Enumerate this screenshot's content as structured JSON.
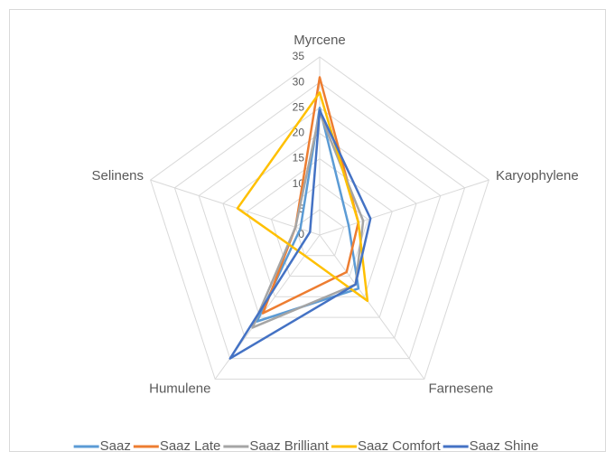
{
  "chart_data": {
    "type": "radar",
    "categories": [
      "Myrcene",
      "Karyophylene",
      "Farnesene",
      "Humulene",
      "Selinens"
    ],
    "ylim": [
      0,
      35
    ],
    "yticks": [
      0,
      5,
      10,
      15,
      20,
      25,
      30,
      35
    ],
    "grid": true,
    "legend": "bottom",
    "series": [
      {
        "name": "Saaz",
        "color": "#5b9bd5",
        "values": [
          25,
          6,
          13,
          21,
          4
        ]
      },
      {
        "name": "Saaz Late",
        "color": "#ed7d31",
        "values": [
          31,
          8,
          9,
          19,
          5
        ]
      },
      {
        "name": "Saaz Brilliant",
        "color": "#a5a5a5",
        "values": [
          24,
          9,
          12,
          22.5,
          5
        ]
      },
      {
        "name": "Saaz Comfort",
        "color": "#ffc000",
        "values": [
          28,
          8,
          16,
          5,
          17
        ]
      },
      {
        "name": "Saaz Shine",
        "color": "#4472c4",
        "values": [
          24.5,
          10.5,
          12,
          30,
          2
        ]
      }
    ]
  }
}
